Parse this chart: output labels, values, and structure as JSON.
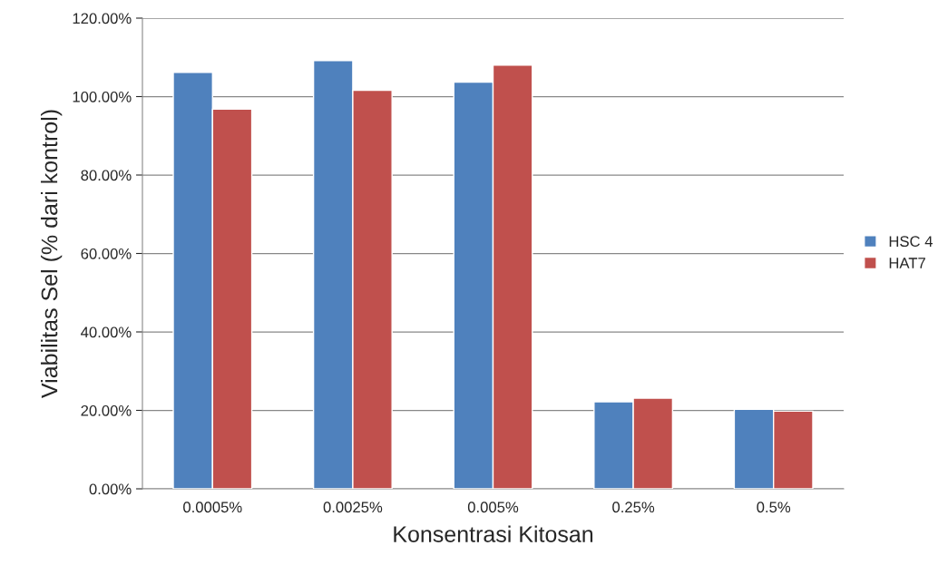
{
  "chart_data": {
    "type": "bar",
    "xlabel": "Konsentrasi Kitosan",
    "ylabel": "Viabilitas Sel (% dari kontrol)",
    "categories": [
      "0.0005%",
      "0.0025%",
      "0.005%",
      "0.25%",
      "0.5%"
    ],
    "series": [
      {
        "name": "HSC 4",
        "color": "#4f81bd",
        "values": [
          106.2,
          109.2,
          103.7,
          22.2,
          20.3
        ]
      },
      {
        "name": "HAT7",
        "color": "#c0504d",
        "values": [
          96.8,
          101.6,
          108.0,
          23.1,
          19.8
        ]
      }
    ],
    "ylim": [
      0,
      120
    ],
    "yticks": [
      {
        "value": 0,
        "label": "0.00%"
      },
      {
        "value": 20,
        "label": "20.00%"
      },
      {
        "value": 40,
        "label": "40.00%"
      },
      {
        "value": 60,
        "label": "60.00%"
      },
      {
        "value": 80,
        "label": "80.00%"
      },
      {
        "value": 100,
        "label": "100.00%"
      },
      {
        "value": 120,
        "label": "120.00%"
      }
    ],
    "grid": "y",
    "legend": "right"
  }
}
